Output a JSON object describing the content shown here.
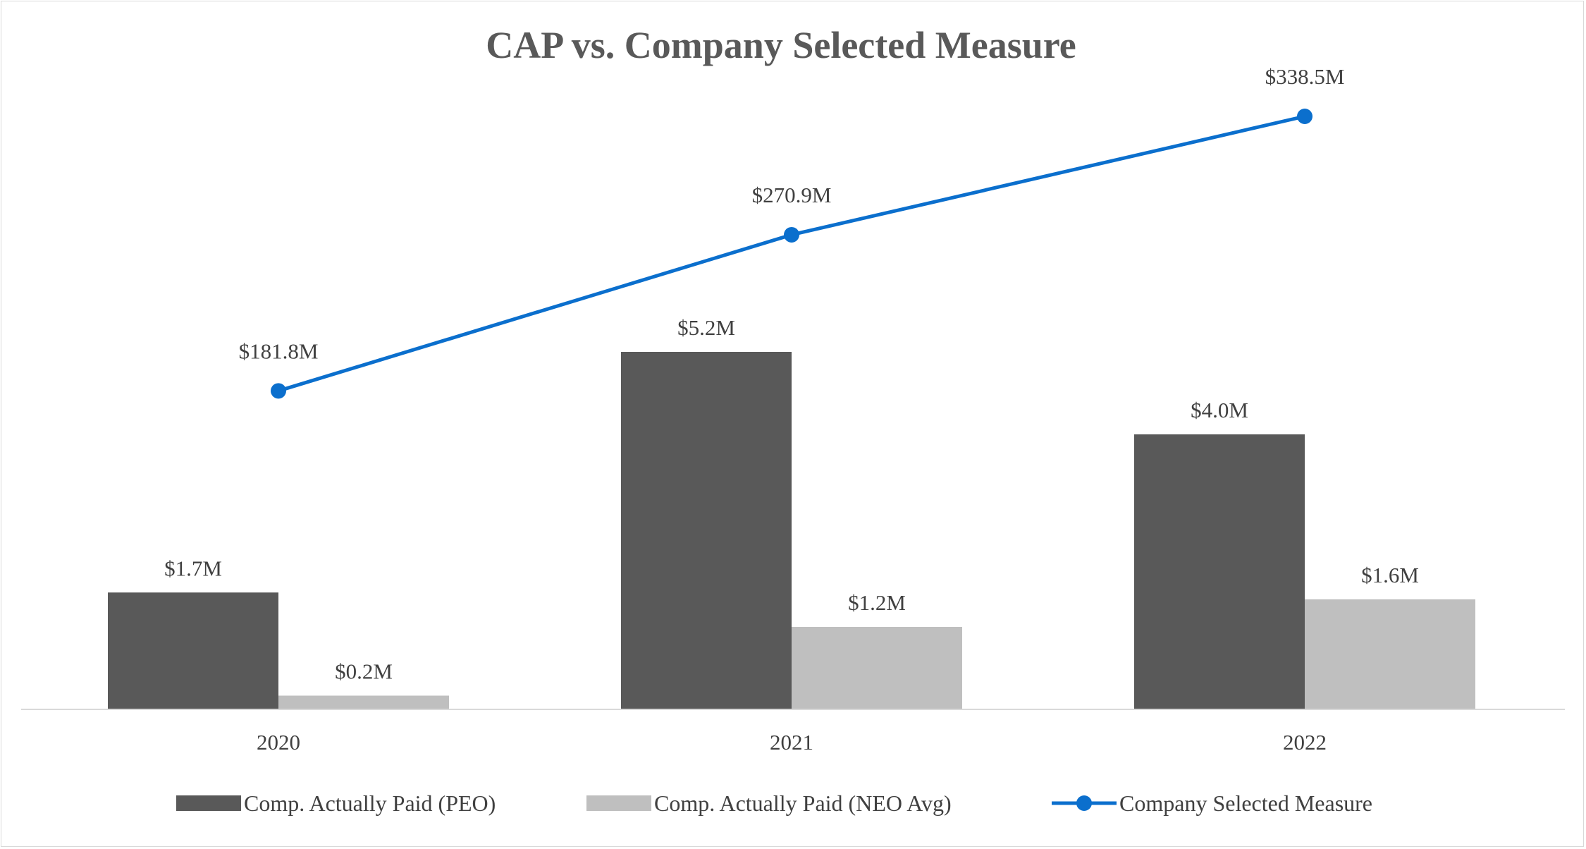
{
  "chart_data": {
    "type": "bar",
    "title": "CAP vs. Company Selected Measure",
    "categories": [
      "2020",
      "2021",
      "2022"
    ],
    "series": [
      {
        "name": "Comp. Actually Paid (PEO)",
        "type": "bar",
        "axis": "primary",
        "color": "#595959",
        "values": [
          1.7,
          5.2,
          4.0
        ],
        "labels": [
          "$1.7M",
          "$5.2M",
          "$4.0M"
        ]
      },
      {
        "name": "Comp. Actually Paid (NEO Avg)",
        "type": "bar",
        "axis": "primary",
        "color": "#bfbfbf",
        "values": [
          0.2,
          1.2,
          1.6
        ],
        "labels": [
          "$0.2M",
          "$1.2M",
          "$1.6M"
        ]
      },
      {
        "name": "Company Selected Measure",
        "type": "line",
        "axis": "secondary",
        "color": "#0b6fcd",
        "values": [
          181.8,
          270.9,
          338.5
        ],
        "labels": [
          "$181.8M",
          "$270.9M",
          "$338.5M"
        ]
      }
    ],
    "primary_ylim": [
      0,
      5.2
    ],
    "secondary_ylim": [
      0,
      338.5
    ],
    "grid": false,
    "legend_position": "bottom",
    "units": "$M"
  }
}
